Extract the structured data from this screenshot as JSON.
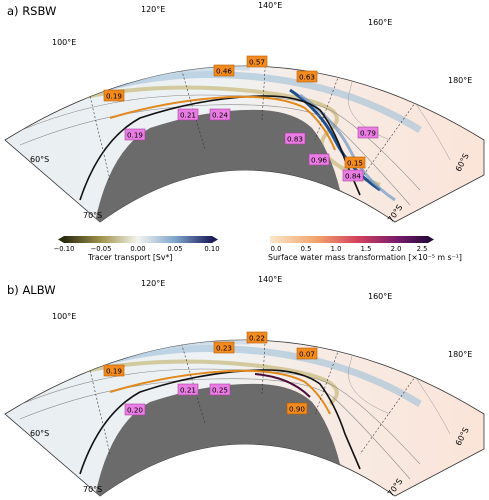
{
  "panels": [
    {
      "title": "a) RSBW",
      "lon_labels": [
        "100°E",
        "120°E",
        "140°E",
        "160°E",
        "180°E"
      ],
      "lat_labels": [
        "60°S",
        "70°S",
        "60°S",
        "70°S"
      ],
      "orange_values": [
        "0.19",
        "0.46",
        "0.57",
        "0.63",
        "0.15"
      ],
      "magenta_values": [
        "0.19",
        "0.21",
        "0.24",
        "0.83",
        "0.79",
        "0.96",
        "0.84"
      ]
    },
    {
      "title": "b) ALBW",
      "lon_labels": [
        "100°E",
        "120°E",
        "140°E",
        "160°E",
        "180°E"
      ],
      "lat_labels": [
        "60°S",
        "70°S",
        "60°S",
        "70°S"
      ],
      "orange_values": [
        "0.19",
        "0.23",
        "0.22",
        "0.07",
        "0.90"
      ],
      "magenta_values": [
        "0.20",
        "0.21",
        "0.25"
      ]
    }
  ],
  "colorbars": {
    "transport": {
      "label": "Tracer transport [Sv*]",
      "ticks": [
        "−0.10",
        "−0.05",
        "0.00",
        "0.05",
        "0.10"
      ]
    },
    "wmt": {
      "label": "Surface water mass transformation [×10⁻⁵ m s⁻¹]",
      "ticks": [
        "0.0",
        "0.5",
        "1.0",
        "1.5",
        "2.0",
        "2.5"
      ]
    }
  },
  "colors": {
    "land": "#6b6b6b",
    "orange_box": "#f28a1e",
    "magenta_box": "#ea7de3"
  }
}
